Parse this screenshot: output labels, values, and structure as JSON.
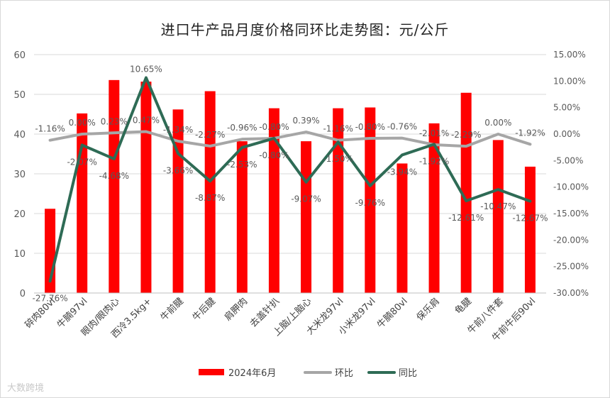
{
  "chart_data": {
    "type": "bar",
    "title": "进口牛产品月度价格同环比走势图：元/公斤",
    "categories": [
      "碎肉80vl",
      "牛腩97vl",
      "眼肉/眼肉心",
      "西冷3.5kg+",
      "牛前腱",
      "牛后腱",
      "肩胛肉",
      "去盖针扒",
      "上脑/上脑心",
      "大米龙97vl",
      "小米龙97vl",
      "牛腩80vl",
      "保乐肩",
      "龟腱",
      "牛前八件套",
      "牛前牛后90vl"
    ],
    "series": [
      {
        "name": "2024年6月",
        "type": "bar",
        "axis": "left",
        "color": "#ff0000",
        "values": [
          21.2,
          45.2,
          53.6,
          53.2,
          46.2,
          50.8,
          38.2,
          46.5,
          38.2,
          46.5,
          46.7,
          32.6,
          42.7,
          50.4,
          38.5,
          31.8
        ]
      },
      {
        "name": "环比",
        "type": "line",
        "axis": "right",
        "color": "#a6a6a6",
        "values": [
          -1.16,
          0.0,
          0.23,
          0.47,
          -1.34,
          -2.27,
          -0.96,
          -0.8,
          0.39,
          -1.16,
          -0.8,
          -0.76,
          -2.01,
          -2.29,
          0.0,
          -1.92
        ],
        "labels": [
          "-1.16%",
          "0.00%",
          "0.23%",
          "0.47%",
          "-1.34%",
          "-2.27%",
          "-0.96%",
          "-0.80%",
          "0.39%",
          "-1.16%",
          "-0.80%",
          "-0.76%",
          "-2.01%",
          "-2.29%",
          "0.00%",
          "-1.92%"
        ]
      },
      {
        "name": "同比",
        "type": "line",
        "axis": "right",
        "color": "#2e6b55",
        "values": [
          -27.76,
          -2.07,
          -4.68,
          10.65,
          -3.66,
          -8.87,
          -2.53,
          -0.8,
          -9.07,
          -1.5,
          -9.76,
          -3.94,
          -1.92,
          -12.61,
          -10.47,
          -12.67
        ],
        "labels": [
          "-27.76%",
          "-2.07%",
          "-4.68%",
          "10.65%",
          "-3.66%",
          "-8.87%",
          "-2.53%",
          "-0.80%",
          "-9.07%",
          "-1.50%",
          "-9.76%",
          "-3.94%",
          "-1.92%",
          "-12.61%",
          "-10.47%",
          "-12.67%"
        ]
      }
    ],
    "y_left": {
      "min": 0,
      "max": 60,
      "step": 10,
      "ticks": [
        "0",
        "10",
        "20",
        "30",
        "40",
        "50",
        "60"
      ]
    },
    "y_right": {
      "min": -30,
      "max": 15,
      "step": 5,
      "ticks": [
        "-30.00%",
        "-25.00%",
        "-20.00%",
        "-15.00%",
        "-10.00%",
        "-5.00%",
        "0.00%",
        "5.00%",
        "10.00%",
        "15.00%"
      ]
    },
    "legend": {
      "position": "bottom",
      "items": [
        "2024年6月",
        "环比",
        "同比"
      ]
    },
    "grid": true
  },
  "watermark": "大数跨境"
}
